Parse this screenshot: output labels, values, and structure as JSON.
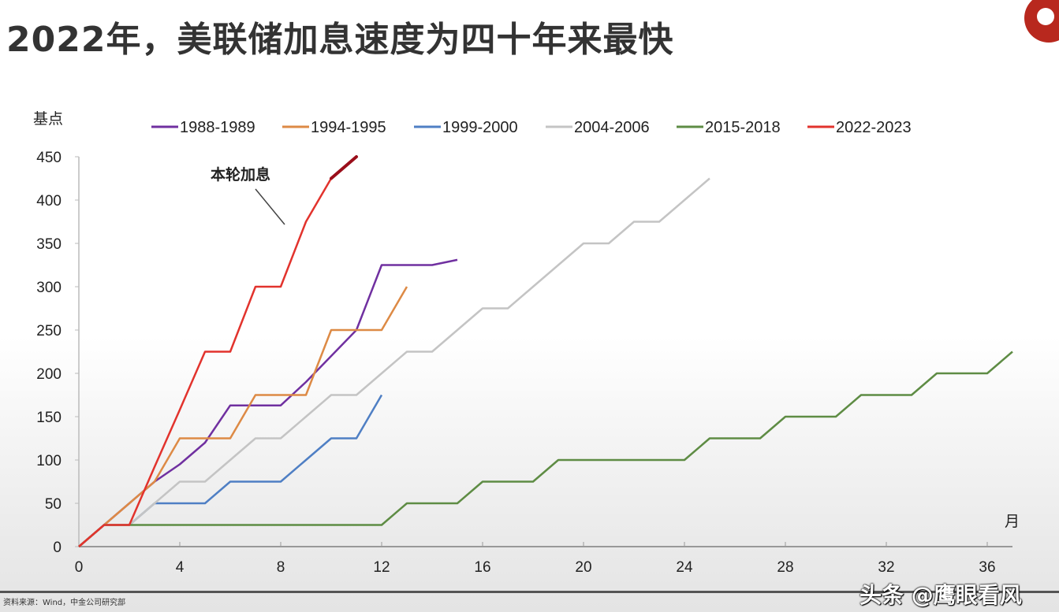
{
  "title": "2022年，美联储加息速度为四十年来最快",
  "source": "资料来源：Wind，中金公司研究部",
  "watermark": "头条 @鹰眼看风",
  "chart_data": {
    "type": "line",
    "title": "",
    "ylabel": "基点",
    "xlabel": "月",
    "xlim": [
      0,
      37
    ],
    "ylim": [
      0,
      450
    ],
    "xticks": [
      0,
      4,
      8,
      12,
      16,
      20,
      24,
      28,
      32,
      36
    ],
    "yticks": [
      0,
      50,
      100,
      150,
      200,
      250,
      300,
      350,
      400,
      450
    ],
    "grid": false,
    "legend_position": "top",
    "annotation": "本轮加息",
    "series": [
      {
        "name": "1988-1989",
        "color": "#7030a0",
        "x": [
          0,
          1,
          2,
          3,
          4,
          5,
          6,
          7,
          8,
          9,
          10,
          11,
          12,
          13,
          14,
          15
        ],
        "y": [
          0,
          25,
          50,
          75,
          95,
          120,
          163,
          163,
          163,
          190,
          220,
          250,
          325,
          325,
          325,
          331
        ]
      },
      {
        "name": "1994-1995",
        "color": "#dd8a45",
        "x": [
          0,
          1,
          2,
          3,
          4,
          5,
          6,
          7,
          8,
          9,
          10,
          11,
          12,
          13
        ],
        "y": [
          0,
          25,
          50,
          75,
          125,
          125,
          125,
          175,
          175,
          175,
          250,
          250,
          250,
          300
        ]
      },
      {
        "name": "1999-2000",
        "color": "#4f7fc4",
        "x": [
          0,
          1,
          2,
          3,
          4,
          5,
          6,
          7,
          8,
          9,
          10,
          11,
          12
        ],
        "y": [
          0,
          25,
          25,
          50,
          50,
          50,
          75,
          75,
          75,
          100,
          125,
          125,
          175
        ]
      },
      {
        "name": "2004-2006",
        "color": "#c4c4c4",
        "x": [
          0,
          1,
          2,
          3,
          4,
          5,
          6,
          7,
          8,
          9,
          10,
          11,
          12,
          13,
          14,
          15,
          16,
          17,
          18,
          19,
          20,
          21,
          22,
          23,
          24,
          25
        ],
        "y": [
          0,
          25,
          25,
          50,
          75,
          75,
          100,
          125,
          125,
          150,
          175,
          175,
          200,
          225,
          225,
          250,
          275,
          275,
          300,
          325,
          350,
          350,
          375,
          375,
          400,
          425
        ]
      },
      {
        "name": "2015-2018",
        "color": "#5e8c44",
        "x": [
          0,
          1,
          2,
          3,
          4,
          5,
          6,
          7,
          8,
          9,
          10,
          11,
          12,
          13,
          14,
          15,
          16,
          17,
          18,
          19,
          20,
          21,
          22,
          23,
          24,
          25,
          26,
          27,
          28,
          29,
          30,
          31,
          32,
          33,
          34,
          35,
          36,
          37
        ],
        "y": [
          0,
          25,
          25,
          25,
          25,
          25,
          25,
          25,
          25,
          25,
          25,
          25,
          25,
          50,
          50,
          50,
          75,
          75,
          75,
          100,
          100,
          100,
          100,
          100,
          100,
          125,
          125,
          125,
          150,
          150,
          150,
          175,
          175,
          175,
          200,
          200,
          200,
          225
        ]
      },
      {
        "name": "2022-2023",
        "color": "#e2332d",
        "x": [
          0,
          1,
          2,
          3,
          4,
          5,
          6,
          7,
          8,
          9,
          10,
          11
        ],
        "y": [
          0,
          25,
          25,
          92,
          158,
          225,
          225,
          300,
          300,
          375,
          425,
          450
        ]
      }
    ]
  }
}
